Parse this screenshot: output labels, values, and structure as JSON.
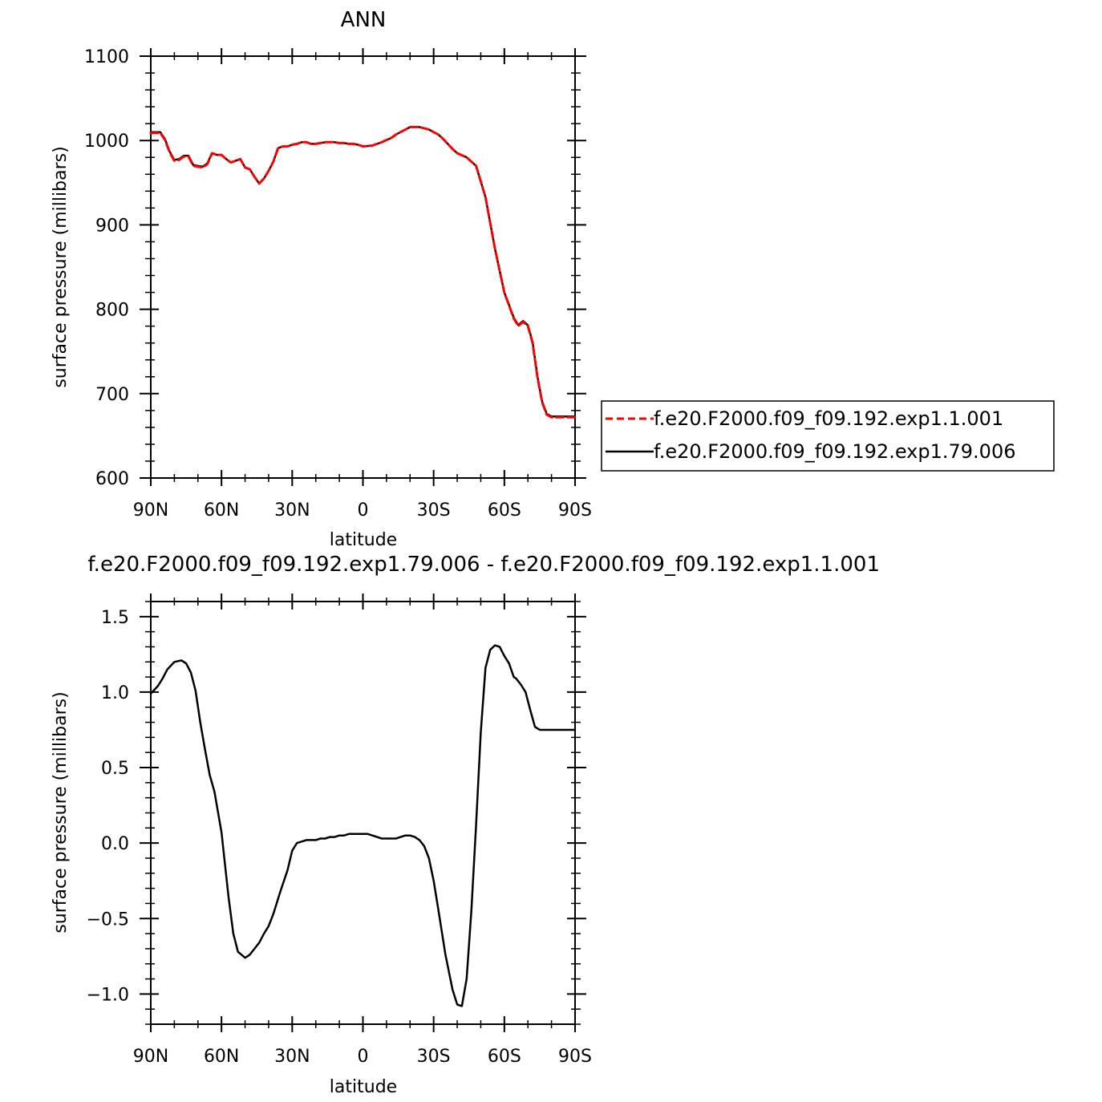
{
  "chart_data": [
    {
      "type": "line",
      "title": "ANN",
      "xlabel": "latitude",
      "ylabel": "surface pressure (millibars)",
      "xlim": [
        90,
        -90
      ],
      "ylim": [
        600,
        1100
      ],
      "x_ticks": [
        90,
        60,
        30,
        0,
        -30,
        -60,
        -90
      ],
      "x_tick_labels": [
        "90N",
        "60N",
        "30N",
        "0",
        "30S",
        "60S",
        "90S"
      ],
      "y_ticks": [
        600,
        700,
        800,
        900,
        1000,
        1100
      ],
      "y_tick_labels": [
        "600",
        "700",
        "800",
        "900",
        "1000",
        "1100"
      ],
      "legend_position": "right",
      "series": [
        {
          "name": "f.e20.F2000.f09_f09.192.exp1.1.001",
          "color": "#ff0000",
          "style": "dashed",
          "x": [
            90,
            86,
            84,
            82,
            80,
            78,
            76,
            74,
            72,
            70,
            68,
            66,
            64,
            62,
            60,
            58,
            56,
            54,
            52,
            50,
            48,
            46,
            44,
            42,
            40,
            38,
            36,
            34,
            32,
            30,
            28,
            26,
            24,
            22,
            20,
            18,
            16,
            14,
            12,
            10,
            8,
            6,
            4,
            2,
            0,
            -4,
            -8,
            -12,
            -14,
            -16,
            -20,
            -24,
            -28,
            -30,
            -32,
            -34,
            -36,
            -38,
            -40,
            -44,
            -48,
            -52,
            -56,
            -60,
            -64,
            -66,
            -67,
            -68,
            -70,
            -72,
            -74,
            -76,
            -78,
            -80,
            -82,
            -84,
            -86,
            -88,
            -90
          ],
          "y": [
            1009,
            1009,
            1001,
            986,
            976,
            977,
            981,
            981,
            970,
            969,
            968,
            972,
            985,
            983,
            983,
            978,
            974,
            976,
            978,
            968,
            966,
            957,
            949,
            955,
            964,
            975,
            991,
            993,
            993,
            995,
            996,
            998,
            998,
            996,
            996,
            997,
            998,
            998,
            998,
            997,
            997,
            996,
            996,
            995,
            993,
            994,
            998,
            1003,
            1007,
            1010,
            1016,
            1016,
            1013,
            1010,
            1007,
            1002,
            996,
            990,
            985,
            980,
            970,
            933,
            872,
            820,
            789,
            780,
            783,
            785,
            780,
            760,
            720,
            690,
            675,
            672,
            672,
            672,
            672,
            672,
            672
          ]
        },
        {
          "name": "f.e20.F2000.f09_f09.192.exp1.79.006",
          "color": "#000000",
          "style": "solid",
          "x": [
            90,
            86,
            84,
            82,
            80,
            78,
            76,
            74,
            72,
            70,
            68,
            66,
            64,
            62,
            60,
            58,
            56,
            54,
            52,
            50,
            48,
            46,
            44,
            42,
            40,
            38,
            36,
            34,
            32,
            30,
            28,
            26,
            24,
            22,
            20,
            18,
            16,
            14,
            12,
            10,
            8,
            6,
            4,
            2,
            0,
            -4,
            -8,
            -12,
            -14,
            -16,
            -20,
            -24,
            -28,
            -30,
            -32,
            -34,
            -36,
            -38,
            -40,
            -44,
            -48,
            -52,
            -56,
            -60,
            -64,
            -66,
            -67,
            -68,
            -70,
            -72,
            -74,
            -76,
            -78,
            -80,
            -82,
            -84,
            -86,
            -88,
            -90
          ],
          "y": [
            1010,
            1010,
            1002,
            987,
            977,
            978,
            982,
            982,
            971,
            970,
            969,
            973,
            985,
            983,
            983,
            978,
            974,
            976,
            978,
            968,
            966,
            957,
            949,
            955,
            964,
            975,
            991,
            993,
            993,
            995,
            996,
            998,
            998,
            996,
            996,
            997,
            998,
            998,
            998,
            997,
            997,
            996,
            996,
            995,
            993,
            994,
            998,
            1003,
            1007,
            1010,
            1016,
            1016,
            1013,
            1010,
            1007,
            1002,
            996,
            990,
            985,
            980,
            970,
            933,
            872,
            820,
            790,
            781,
            784,
            786,
            781,
            761,
            721,
            691,
            676,
            673,
            673,
            673,
            673,
            673,
            673
          ]
        }
      ]
    },
    {
      "type": "line",
      "title": "f.e20.F2000.f09_f09.192.exp1.79.006 - f.e20.F2000.f09_f09.192.exp1.1.001",
      "xlabel": "latitude",
      "ylabel": "surface pressure (millibars)",
      "xlim": [
        90,
        -90
      ],
      "ylim": [
        -1.2,
        1.6
      ],
      "x_ticks": [
        90,
        60,
        30,
        0,
        -30,
        -60,
        -90
      ],
      "x_tick_labels": [
        "90N",
        "60N",
        "30N",
        "0",
        "30S",
        "60S",
        "90S"
      ],
      "y_ticks": [
        -1.0,
        -0.5,
        0.0,
        0.5,
        1.0,
        1.5
      ],
      "y_tick_labels": [
        "-1.0",
        "-0.5",
        "0.0",
        "0.5",
        "1.0",
        "1.5"
      ],
      "series": [
        {
          "color": "#000000",
          "style": "solid",
          "x": [
            90,
            87,
            85,
            83,
            80,
            77,
            75,
            73,
            71,
            69,
            67,
            65,
            63,
            60,
            57,
            55,
            53,
            50,
            48,
            46,
            44,
            42,
            40,
            38,
            35,
            32,
            30,
            28,
            26,
            24,
            22,
            20,
            18,
            16,
            14,
            12,
            10,
            8,
            6,
            4,
            2,
            0,
            -2,
            -4,
            -6,
            -8,
            -10,
            -12,
            -14,
            -16,
            -18,
            -20,
            -22,
            -24,
            -26,
            -28,
            -30,
            -32,
            -35,
            -38,
            -40,
            -42,
            -44,
            -46,
            -48,
            -50,
            -52,
            -54,
            -56,
            -58,
            -60,
            -62,
            -64,
            -65,
            -67,
            -69,
            -71,
            -73,
            -75,
            -77,
            -78,
            -80,
            -82,
            -84,
            -86,
            -88,
            -90
          ],
          "y": [
            0.99,
            1.04,
            1.09,
            1.15,
            1.2,
            1.21,
            1.19,
            1.13,
            1.01,
            0.8,
            0.62,
            0.45,
            0.34,
            0.07,
            -0.36,
            -0.6,
            -0.72,
            -0.76,
            -0.74,
            -0.7,
            -0.66,
            -0.6,
            -0.55,
            -0.47,
            -0.32,
            -0.18,
            -0.05,
            0.0,
            0.01,
            0.02,
            0.02,
            0.02,
            0.03,
            0.03,
            0.04,
            0.04,
            0.05,
            0.05,
            0.06,
            0.06,
            0.06,
            0.06,
            0.06,
            0.05,
            0.04,
            0.03,
            0.03,
            0.03,
            0.03,
            0.04,
            0.05,
            0.05,
            0.04,
            0.02,
            -0.02,
            -0.1,
            -0.25,
            -0.44,
            -0.74,
            -0.97,
            -1.07,
            -1.08,
            -0.9,
            -0.45,
            0.12,
            0.73,
            1.16,
            1.28,
            1.31,
            1.3,
            1.24,
            1.19,
            1.1,
            1.09,
            1.05,
            1.0,
            0.88,
            0.77,
            0.75,
            0.75,
            0.75,
            0.75,
            0.75,
            0.75,
            0.75,
            0.75,
            0.75
          ]
        }
      ]
    }
  ]
}
